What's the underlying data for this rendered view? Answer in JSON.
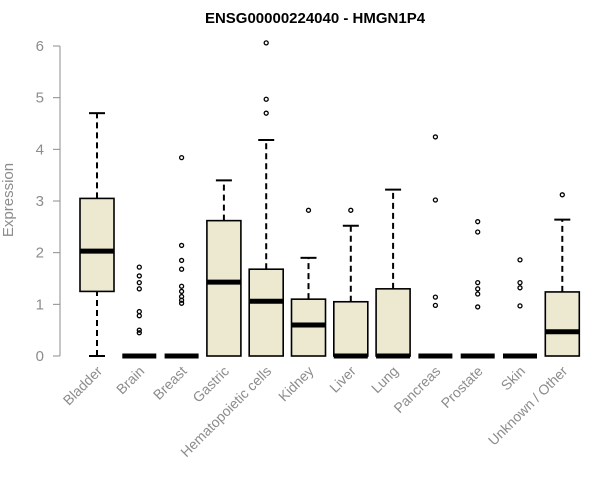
{
  "chart_data": {
    "type": "box",
    "title": "ENSG00000224040 - HMGN1P4",
    "xlabel": "",
    "ylabel": "Expression",
    "ylim": [
      0,
      6
    ],
    "yticks": [
      0,
      1,
      2,
      3,
      4,
      5,
      6
    ],
    "grid": false,
    "colors": {
      "box_fill": "#ede8d0",
      "stroke": "#000000",
      "axis": "#8c8c8c",
      "title": "#000000"
    },
    "categories": [
      "Bladder",
      "Brain",
      "Breast",
      "Gastric",
      "Hematopoietic cells",
      "Kidney",
      "Liver",
      "Lung",
      "Pancreas",
      "Prostate",
      "Skin",
      "Unknown / Other"
    ],
    "boxes": [
      {
        "min": 0,
        "q1": 1.25,
        "median": 2.03,
        "q3": 3.05,
        "max": 4.7,
        "outliers": []
      },
      {
        "min": 0,
        "q1": 0,
        "median": 0,
        "q3": 0,
        "max": 0,
        "outliers": [
          1.72,
          1.55,
          1.42,
          1.3,
          0.86,
          0.78,
          0.5,
          0.45
        ]
      },
      {
        "min": 0,
        "q1": 0,
        "median": 0,
        "q3": 0,
        "max": 0,
        "outliers": [
          3.84,
          2.14,
          1.85,
          1.68,
          1.35,
          1.25,
          1.15,
          1.08,
          1.02
        ]
      },
      {
        "min": 0,
        "q1": 0,
        "median": 1.43,
        "q3": 2.62,
        "max": 3.4,
        "outliers": []
      },
      {
        "min": 0,
        "q1": 0,
        "median": 1.06,
        "q3": 1.68,
        "max": 4.18,
        "outliers": [
          6.06,
          4.97,
          4.7
        ]
      },
      {
        "min": 0,
        "q1": 0,
        "median": 0.6,
        "q3": 1.1,
        "max": 1.9,
        "outliers": [
          2.82
        ]
      },
      {
        "min": 0,
        "q1": 0,
        "median": 0,
        "q3": 1.05,
        "max": 2.52,
        "outliers": [
          2.82
        ]
      },
      {
        "min": 0,
        "q1": 0,
        "median": 0,
        "q3": 1.3,
        "max": 3.22,
        "outliers": []
      },
      {
        "min": 0,
        "q1": 0,
        "median": 0,
        "q3": 0,
        "max": 0,
        "outliers": [
          4.24,
          3.02,
          1.14,
          0.98
        ]
      },
      {
        "min": 0,
        "q1": 0,
        "median": 0,
        "q3": 0,
        "max": 0,
        "outliers": [
          2.6,
          2.4,
          1.42,
          1.3,
          1.2,
          0.95
        ]
      },
      {
        "min": 0,
        "q1": 0,
        "median": 0,
        "q3": 0,
        "max": 0,
        "outliers": [
          1.86,
          1.42,
          1.32,
          0.97
        ]
      },
      {
        "min": 0,
        "q1": 0,
        "median": 0.47,
        "q3": 1.24,
        "max": 2.64,
        "outliers": [
          3.12
        ]
      }
    ]
  }
}
